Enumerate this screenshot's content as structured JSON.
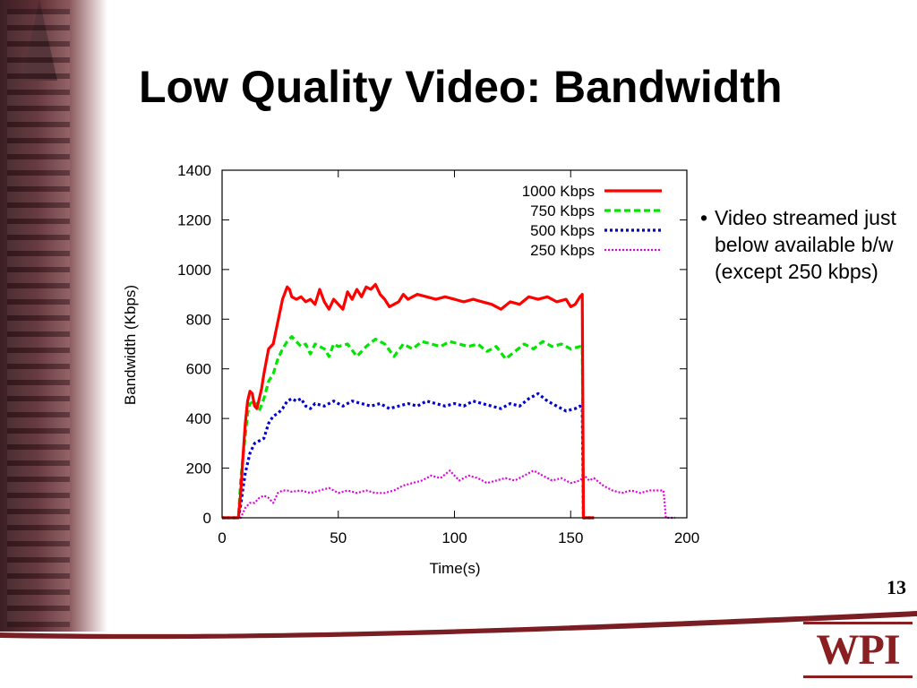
{
  "slide": {
    "title": "Low Quality Video: Bandwidth",
    "page_number": "13",
    "bullets": [
      "Video streamed just below available b/w (except 250 kbps)"
    ],
    "logo_text": "WPI"
  },
  "colors": {
    "accent": "#8a1f22",
    "s1000": "#ff0000",
    "s750": "#00e600",
    "s500": "#0000cc",
    "s250": "#e000e0"
  },
  "chart_data": {
    "type": "line",
    "title": "",
    "xlabel": "Time(s)",
    "ylabel": "Bandwidth (Kbps)",
    "xlim": [
      0,
      200
    ],
    "ylim": [
      0,
      1400
    ],
    "xticks": [
      0,
      50,
      100,
      150,
      200
    ],
    "yticks": [
      0,
      200,
      400,
      600,
      800,
      1000,
      1200,
      1400
    ],
    "legend_position": "top-right",
    "series": [
      {
        "name": "1000 Kbps",
        "style": "solid",
        "x": [
          0,
          7,
          8,
          9,
          10,
          11,
          12,
          13,
          14,
          15,
          17,
          18,
          20,
          22,
          24,
          26,
          28,
          29,
          30,
          32,
          34,
          36,
          38,
          40,
          42,
          44,
          46,
          48,
          50,
          52,
          54,
          56,
          58,
          60,
          62,
          64,
          66,
          68,
          70,
          72,
          74,
          76,
          78,
          80,
          84,
          88,
          92,
          96,
          100,
          104,
          108,
          112,
          116,
          120,
          124,
          128,
          132,
          136,
          140,
          144,
          148,
          150,
          152,
          154,
          155,
          155.5,
          157,
          160
        ],
        "y": [
          0,
          0,
          100,
          250,
          380,
          470,
          510,
          500,
          450,
          440,
          520,
          580,
          680,
          700,
          790,
          880,
          930,
          920,
          890,
          880,
          890,
          870,
          880,
          860,
          920,
          870,
          840,
          880,
          860,
          840,
          910,
          880,
          920,
          890,
          930,
          920,
          940,
          900,
          880,
          850,
          860,
          870,
          900,
          880,
          900,
          890,
          880,
          890,
          880,
          870,
          880,
          870,
          860,
          840,
          870,
          860,
          890,
          880,
          890,
          870,
          880,
          850,
          860,
          890,
          900,
          0,
          0,
          0
        ]
      },
      {
        "name": "750 Kbps",
        "style": "dashed",
        "x": [
          0,
          7,
          8,
          9,
          10,
          11,
          12,
          14,
          16,
          18,
          20,
          22,
          24,
          26,
          28,
          30,
          32,
          34,
          36,
          38,
          40,
          42,
          44,
          46,
          48,
          50,
          54,
          58,
          62,
          66,
          70,
          74,
          78,
          82,
          86,
          90,
          94,
          98,
          102,
          106,
          110,
          114,
          118,
          122,
          126,
          130,
          134,
          138,
          142,
          146,
          150,
          154,
          155,
          155.5,
          157,
          160
        ],
        "y": [
          0,
          0,
          150,
          250,
          330,
          420,
          460,
          470,
          430,
          480,
          550,
          580,
          640,
          680,
          710,
          730,
          710,
          690,
          700,
          660,
          700,
          690,
          680,
          650,
          700,
          690,
          700,
          650,
          690,
          720,
          700,
          650,
          700,
          680,
          710,
          700,
          690,
          710,
          700,
          690,
          700,
          670,
          690,
          640,
          670,
          700,
          680,
          710,
          690,
          700,
          680,
          690,
          690,
          0,
          0,
          0
        ]
      },
      {
        "name": "500 Kbps",
        "style": "dotted",
        "x": [
          0,
          7,
          8,
          9,
          10,
          12,
          14,
          16,
          18,
          20,
          22,
          24,
          26,
          28,
          30,
          32,
          34,
          36,
          38,
          40,
          44,
          48,
          52,
          56,
          60,
          64,
          68,
          72,
          76,
          80,
          84,
          88,
          92,
          96,
          100,
          104,
          108,
          112,
          116,
          120,
          124,
          128,
          132,
          136,
          140,
          144,
          148,
          152,
          154,
          155,
          155.5,
          157,
          160
        ],
        "y": [
          0,
          0,
          50,
          120,
          180,
          260,
          300,
          310,
          320,
          380,
          410,
          420,
          440,
          470,
          480,
          470,
          480,
          450,
          440,
          460,
          450,
          470,
          450,
          470,
          460,
          450,
          460,
          440,
          450,
          460,
          450,
          470,
          460,
          450,
          460,
          450,
          470,
          460,
          450,
          440,
          460,
          450,
          480,
          500,
          470,
          450,
          430,
          440,
          450,
          440,
          0,
          0,
          0
        ]
      },
      {
        "name": "250 Kbps",
        "style": "dotted-fine",
        "x": [
          0,
          8,
          9,
          10,
          12,
          14,
          16,
          18,
          20,
          22,
          24,
          26,
          28,
          30,
          34,
          38,
          42,
          46,
          50,
          54,
          58,
          62,
          66,
          70,
          74,
          78,
          82,
          86,
          90,
          94,
          98,
          102,
          106,
          110,
          114,
          118,
          122,
          126,
          130,
          134,
          138,
          142,
          146,
          150,
          154,
          156,
          158,
          160,
          164,
          168,
          172,
          176,
          180,
          184,
          188,
          190,
          191,
          195
        ],
        "y": [
          0,
          0,
          20,
          40,
          60,
          60,
          80,
          90,
          80,
          60,
          100,
          110,
          110,
          105,
          110,
          100,
          110,
          120,
          100,
          110,
          100,
          110,
          100,
          100,
          110,
          130,
          140,
          150,
          170,
          160,
          190,
          150,
          170,
          160,
          140,
          150,
          160,
          150,
          170,
          190,
          170,
          150,
          160,
          140,
          150,
          170,
          150,
          160,
          130,
          110,
          100,
          110,
          100,
          110,
          110,
          110,
          0,
          0
        ]
      }
    ]
  }
}
